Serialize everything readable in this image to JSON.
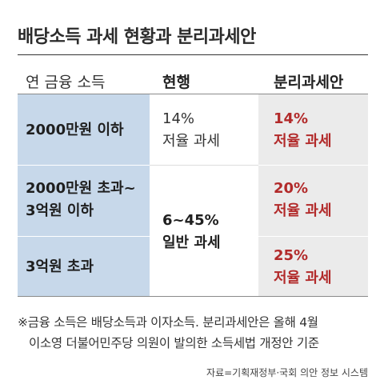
{
  "title": "배당소득 과세 현황과 분리과세안",
  "headers": {
    "category": "연 금융 소득",
    "current": "현행",
    "proposal": "분리과세안"
  },
  "rows": [
    {
      "label_line1": "2000만원 이하",
      "label_line2": "",
      "proposal_rate": "14%",
      "proposal_type": "저율 과세"
    },
    {
      "label_line1": "2000만원 초과~",
      "label_line2": "3억원 이하",
      "proposal_rate": "20%",
      "proposal_type": "저율 과세"
    },
    {
      "label_line1": "3억원 초과",
      "label_line2": "",
      "proposal_rate": "25%",
      "proposal_type": "저율 과세"
    }
  ],
  "current": {
    "low": {
      "rate": "14%",
      "type": "저율 과세"
    },
    "high": {
      "rate": "6~45%",
      "type": "일반 과세"
    }
  },
  "note": {
    "line1": "※금융 소득은 배당소득과 이자소득. 분리과세안은 올해 4월",
    "line2": "이소영 더불어민주당 의원이 발의한 소득세법 개정안 기준"
  },
  "source": "자료=기획재정부·국회 의안 정보 시스템",
  "colors": {
    "category_bg": "#c7d8ea",
    "proposal_bg": "#ebebeb",
    "proposal_text": "#b22a2a"
  }
}
